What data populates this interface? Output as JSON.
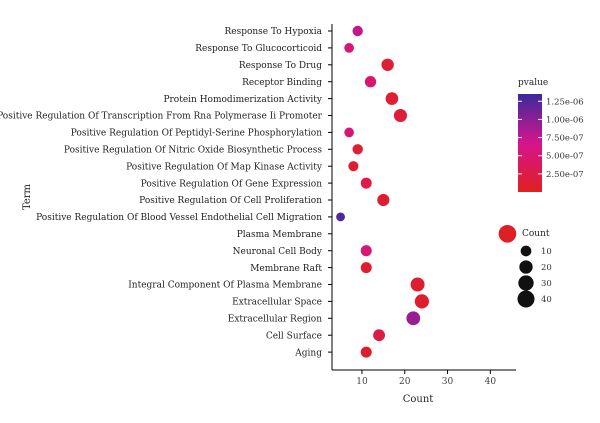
{
  "chart_data": {
    "type": "scatter",
    "xlabel": "Count",
    "ylabel": "Term",
    "xlim": [
      3,
      46
    ],
    "xticks": [
      10,
      20,
      30,
      40
    ],
    "grid": false,
    "points": [
      {
        "term": "Response To Hypoxia",
        "count": 9,
        "pvalue": 7.5e-07
      },
      {
        "term": "Response To Glucocorticoid",
        "count": 7,
        "pvalue": 5.5e-07
      },
      {
        "term": "Response To Drug",
        "count": 16,
        "pvalue": 1.2e-07
      },
      {
        "term": "Receptor Binding",
        "count": 12,
        "pvalue": 4.8e-07
      },
      {
        "term": "Protein Homodimerization Activity",
        "count": 17,
        "pvalue": 1.2e-07
      },
      {
        "term": "Positive Regulation Of Transcription From Rna Polymerase Ii Promoter",
        "count": 19,
        "pvalue": 1.8e-07
      },
      {
        "term": "Positive Regulation Of Peptidyl-Serine Phosphorylation",
        "count": 7,
        "pvalue": 5.5e-07
      },
      {
        "term": "Positive Regulation Of Nitric Oxide Biosynthetic Process",
        "count": 9,
        "pvalue": 1.2e-07
      },
      {
        "term": "Positive Regulation Of Map Kinase Activity",
        "count": 8,
        "pvalue": 1e-07
      },
      {
        "term": "Positive Regulation Of Gene Expression",
        "count": 11,
        "pvalue": 2.5e-07
      },
      {
        "term": "Positive Regulation Of Cell Proliferation",
        "count": 15,
        "pvalue": 1e-07
      },
      {
        "term": "Positive Regulation Of Blood Vessel Endothelial Cell Migration",
        "count": 5,
        "pvalue": 1.25e-06
      },
      {
        "term": "Plasma Membrane",
        "count": 44,
        "pvalue": 5e-08
      },
      {
        "term": "Neuronal Cell Body",
        "count": 11,
        "pvalue": 5.5e-07
      },
      {
        "term": "Membrane Raft",
        "count": 11,
        "pvalue": 1e-07
      },
      {
        "term": "Integral Component Of Plasma Membrane",
        "count": 23,
        "pvalue": 1e-07
      },
      {
        "term": "Extracellular Space",
        "count": 24,
        "pvalue": 1e-07
      },
      {
        "term": "Extracellular Region",
        "count": 22,
        "pvalue": 9.5e-07
      },
      {
        "term": "Cell Surface",
        "count": 14,
        "pvalue": 2.5e-07
      },
      {
        "term": "Aging",
        "count": 11,
        "pvalue": 1e-07
      }
    ],
    "color_legend": {
      "title": "pvalue",
      "ticks": [
        {
          "value": 1.25e-06,
          "label": "1.25e-06"
        },
        {
          "value": 1e-06,
          "label": "1.00e-06"
        },
        {
          "value": 7.5e-07,
          "label": "7.50e-07"
        },
        {
          "value": 5e-07,
          "label": "5.00e-07"
        },
        {
          "value": 2.5e-07,
          "label": "2.50e-07"
        }
      ],
      "range": [
        0,
        1.35e-06
      ],
      "low_color": "#e0201e",
      "mid_color": "#d5158c",
      "high_color": "#3b2a9c"
    },
    "size_legend": {
      "title": "Count",
      "items": [
        {
          "value": 10,
          "label": "10"
        },
        {
          "value": 20,
          "label": "20"
        },
        {
          "value": 30,
          "label": "30"
        },
        {
          "value": 40,
          "label": "40"
        }
      ]
    }
  }
}
